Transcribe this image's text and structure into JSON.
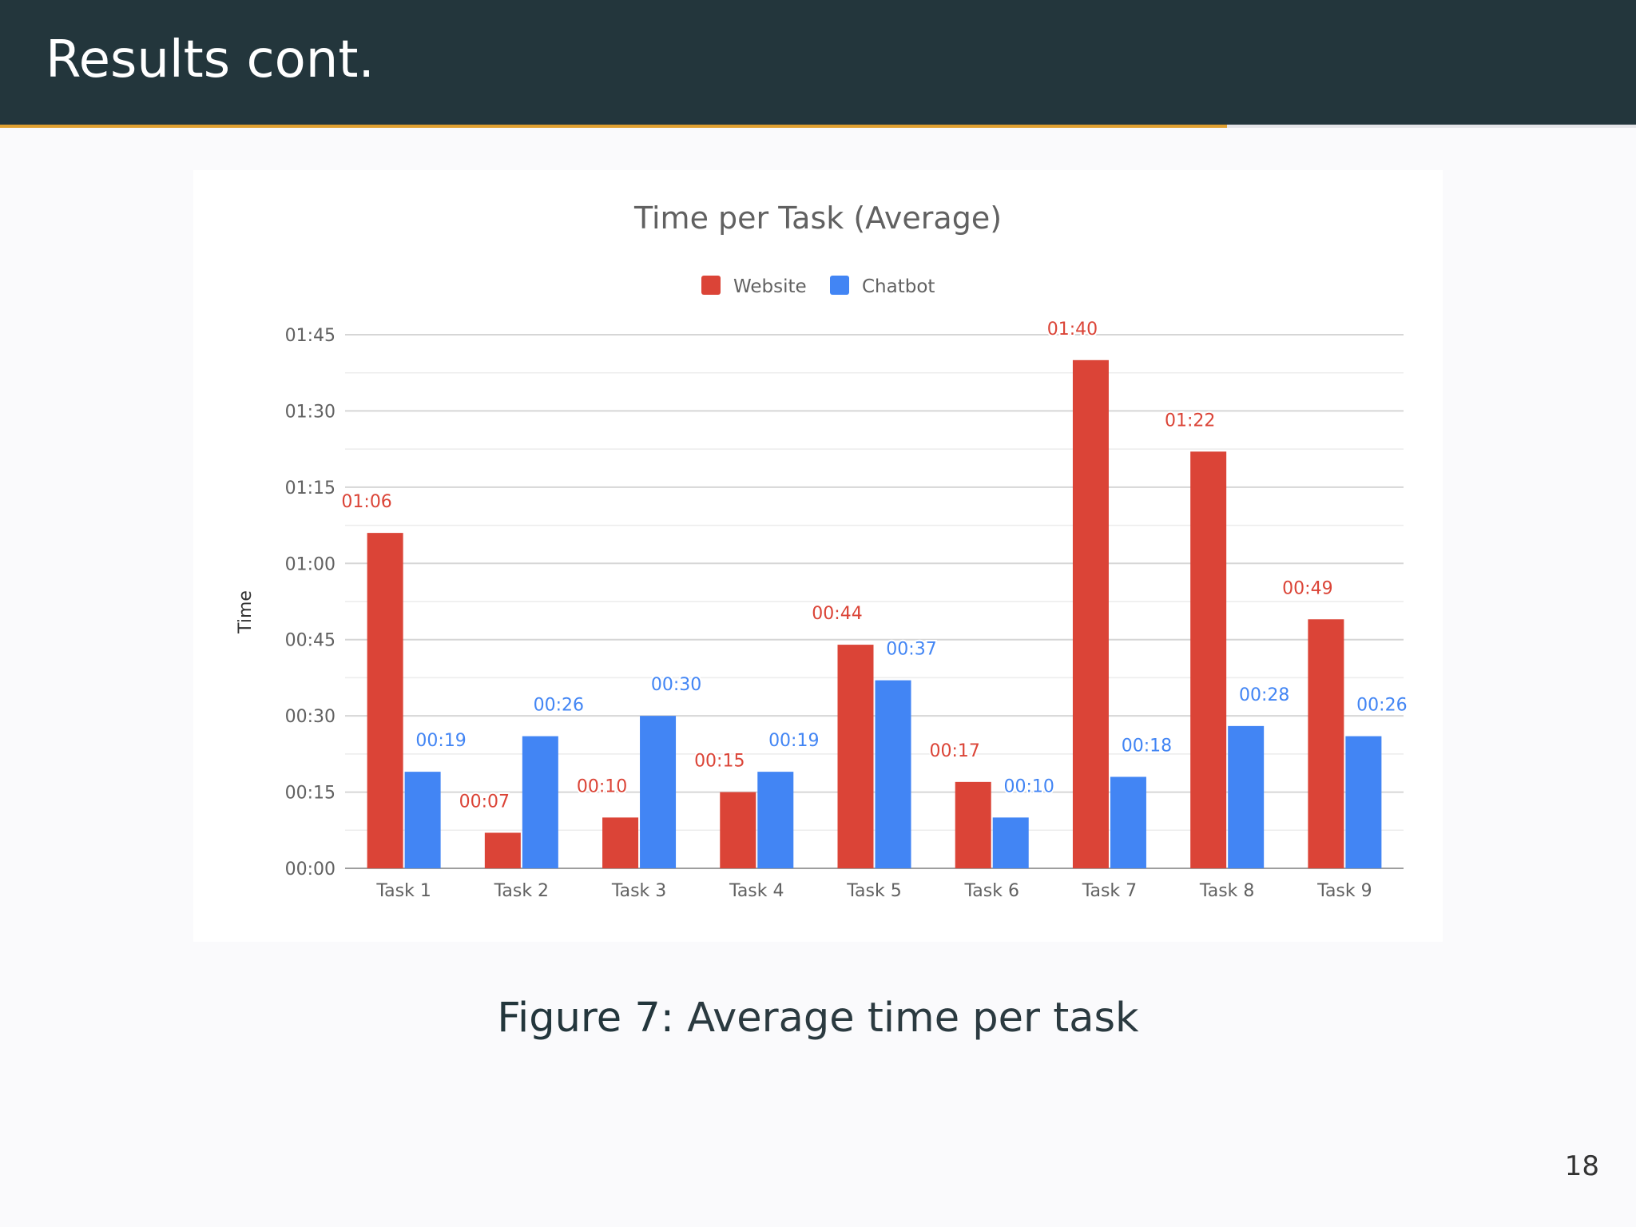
{
  "slide": {
    "title": "Results cont.",
    "progress": 0.75,
    "page_number": "18",
    "caption_label": "Figure 7:",
    "caption_text": "Average time per task"
  },
  "colors": {
    "website": "#db4437",
    "chatbot": "#4285f4",
    "header_bg": "#23363c",
    "progress_accent": "#e0a030"
  },
  "chart_data": {
    "type": "bar",
    "title": "Time per Task (Average)",
    "xlabel": "",
    "ylabel": "Time",
    "y_unit": "seconds",
    "ylim": [
      0,
      105
    ],
    "y_ticks": [
      0,
      15,
      30,
      45,
      60,
      75,
      90,
      105
    ],
    "y_tick_labels": [
      "00:00",
      "00:15",
      "00:30",
      "00:45",
      "01:00",
      "01:15",
      "01:30",
      "01:45"
    ],
    "grid": true,
    "legend_position": "top",
    "categories": [
      "Task 1",
      "Task 2",
      "Task 3",
      "Task 4",
      "Task 5",
      "Task 6",
      "Task 7",
      "Task 8",
      "Task 9"
    ],
    "series": [
      {
        "name": "Website",
        "color": "#db4437",
        "values": [
          66,
          7,
          10,
          15,
          44,
          17,
          100,
          82,
          49
        ],
        "labels": [
          "01:06",
          "00:07",
          "00:10",
          "00:15",
          "00:44",
          "00:17",
          "01:40",
          "01:22",
          "00:49"
        ]
      },
      {
        "name": "Chatbot",
        "color": "#4285f4",
        "values": [
          19,
          26,
          30,
          19,
          37,
          10,
          18,
          28,
          26
        ],
        "labels": [
          "00:19",
          "00:26",
          "00:30",
          "00:19",
          "00:37",
          "00:10",
          "00:18",
          "00:28",
          "00:26"
        ]
      }
    ]
  }
}
